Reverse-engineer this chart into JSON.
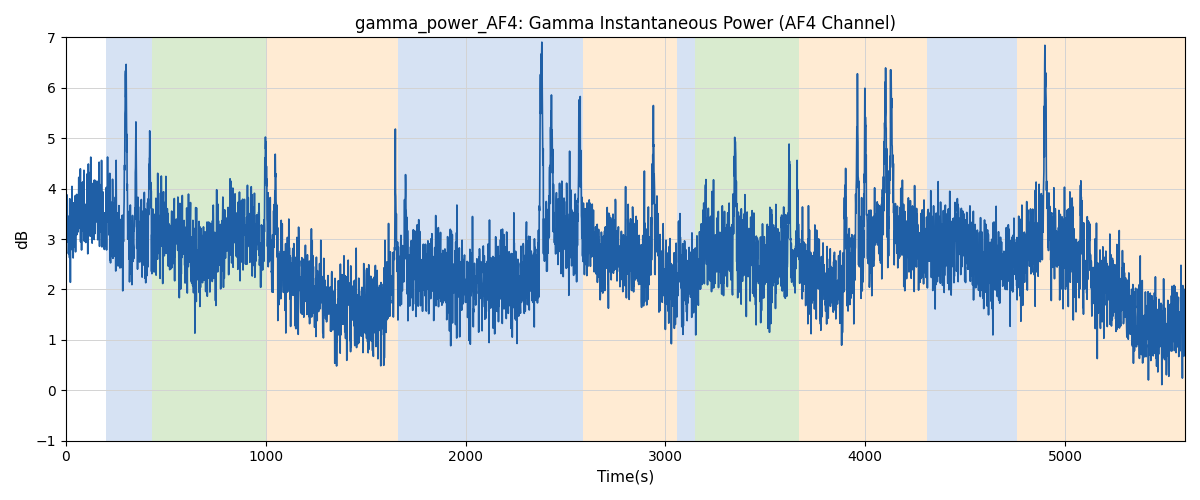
{
  "title": "gamma_power_AF4: Gamma Instantaneous Power (AF4 Channel)",
  "xlabel": "Time(s)",
  "ylabel": "dB",
  "ylim": [
    -1,
    7
  ],
  "xlim": [
    0,
    5600
  ],
  "line_color": "#1f5fa6",
  "line_width": 1.2,
  "background_color": "#ffffff",
  "bands": [
    {
      "xstart": 200,
      "xend": 430,
      "color": "#aec6e8",
      "alpha": 0.5
    },
    {
      "xstart": 430,
      "xend": 1000,
      "color": "#b5d9a0",
      "alpha": 0.5
    },
    {
      "xstart": 1000,
      "xend": 1660,
      "color": "#ffd9a8",
      "alpha": 0.5
    },
    {
      "xstart": 1660,
      "xend": 2590,
      "color": "#aec6e8",
      "alpha": 0.5
    },
    {
      "xstart": 2590,
      "xend": 3060,
      "color": "#ffd9a8",
      "alpha": 0.5
    },
    {
      "xstart": 3060,
      "xend": 3150,
      "color": "#aec6e8",
      "alpha": 0.5
    },
    {
      "xstart": 3150,
      "xend": 3670,
      "color": "#b5d9a0",
      "alpha": 0.5
    },
    {
      "xstart": 3670,
      "xend": 4310,
      "color": "#ffd9a8",
      "alpha": 0.5
    },
    {
      "xstart": 4310,
      "xend": 4760,
      "color": "#aec6e8",
      "alpha": 0.5
    },
    {
      "xstart": 4760,
      "xend": 5600,
      "color": "#ffd9a8",
      "alpha": 0.5
    }
  ],
  "spike_locs": [
    300,
    350,
    420,
    1000,
    1050,
    1650,
    1700,
    2380,
    2430,
    2570,
    2940,
    2960,
    3070,
    3200,
    3350,
    3620,
    3660,
    3900,
    3960,
    4000,
    4100,
    4130,
    4900,
    5080,
    5120
  ],
  "spike_heights": [
    3.2,
    1.8,
    1.3,
    1.7,
    1.5,
    1.8,
    1.5,
    4.2,
    2.4,
    2.5,
    2.6,
    0.8,
    0.8,
    1.2,
    2.1,
    1.8,
    1.4,
    1.6,
    2.6,
    2.6,
    2.6,
    2.6,
    3.4,
    1.3,
    1.0
  ],
  "spike_widths": [
    5,
    4,
    4,
    5,
    5,
    4,
    4,
    6,
    6,
    5,
    5,
    4,
    4,
    4,
    5,
    4,
    4,
    4,
    5,
    5,
    5,
    5,
    5,
    4,
    4
  ]
}
